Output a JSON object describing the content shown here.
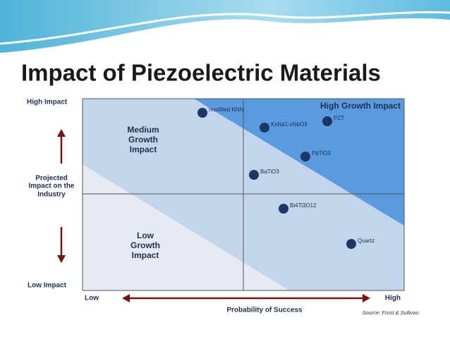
{
  "title": "Impact of Piezoelectric Materials",
  "matrix": {
    "y_axis_top": "High Impact",
    "y_axis_bottom": "Low Impact",
    "y_axis_label": [
      "Projected",
      "Impact on the",
      "Industry"
    ],
    "x_axis_left": "Low",
    "x_axis_right": "High",
    "x_axis_label": "Probability of Success",
    "regions": {
      "medium": [
        "Medium",
        "Growth",
        "Impact"
      ],
      "low": [
        "Low",
        "Growth",
        "Impact"
      ],
      "high": "High Growth Impact"
    },
    "materials": [
      "modified KNN",
      "KxNa1-xNbO3",
      "PZT",
      "PbTiO3",
      "BaTiO3",
      "Bi4Ti3O12",
      "Quartz"
    ],
    "source": "Source: Frost & Sullivan."
  }
}
